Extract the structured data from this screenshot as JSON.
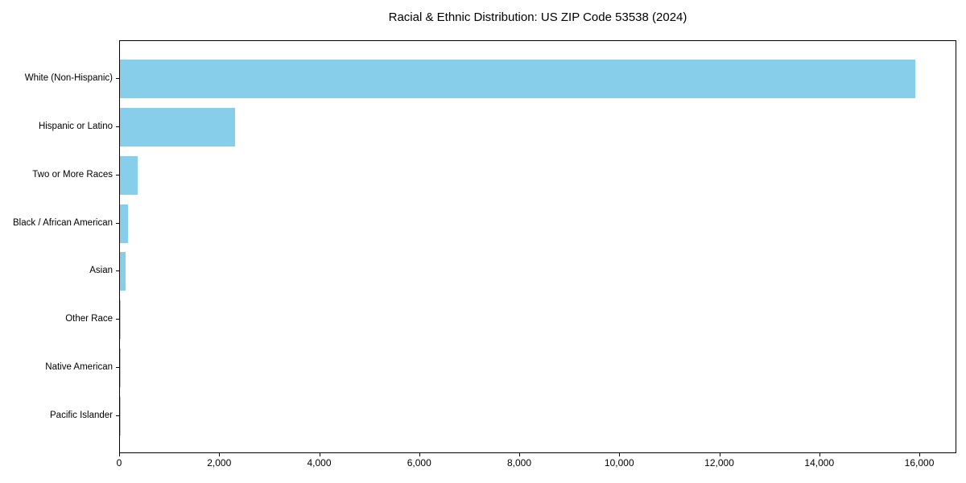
{
  "title": "Racial & Ethnic Distribution: US ZIP Code 53538 (2024)",
  "colors": {
    "bar": "#87CEEB",
    "axis": "#000000",
    "text": "#000000",
    "background": "#FFFFFF"
  },
  "chart_data": {
    "type": "bar",
    "orientation": "horizontal",
    "title": "Racial & Ethnic Distribution: US ZIP Code 53538 (2024)",
    "categories": [
      "White (Non-Hispanic)",
      "Hispanic or Latino",
      "Two or More Races",
      "Black / African American",
      "Asian",
      "Other Race",
      "Native American",
      "Pacific Islander"
    ],
    "values": [
      15900,
      2300,
      350,
      160,
      110,
      15,
      8,
      3
    ],
    "xlabel": "",
    "ylabel": "",
    "xlim": [
      0,
      16740
    ],
    "xticks": [
      0,
      2000,
      4000,
      6000,
      8000,
      10000,
      12000,
      14000,
      16000
    ],
    "xtick_labels": [
      "0",
      "2,000",
      "4,000",
      "6,000",
      "8,000",
      "10,000",
      "12,000",
      "14,000",
      "16,000"
    ],
    "grid": false,
    "legend": null,
    "bar_color": "#87CEEB"
  }
}
